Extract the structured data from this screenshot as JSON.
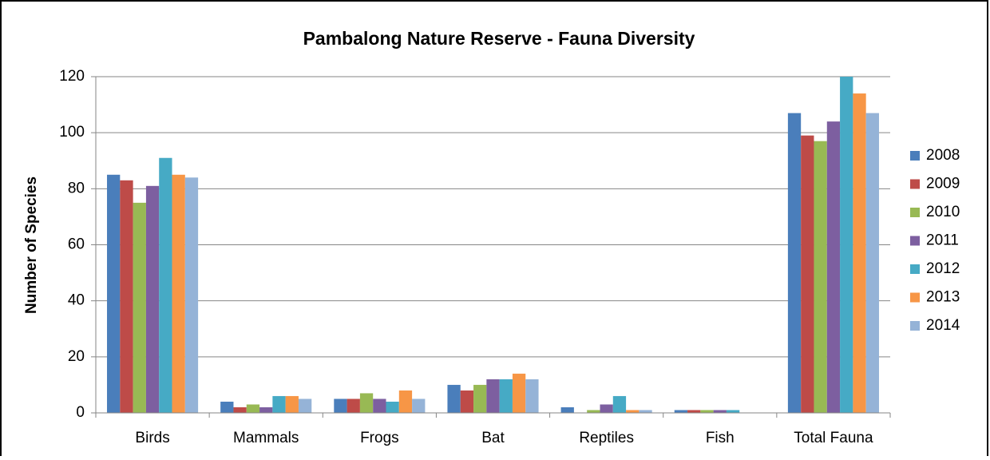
{
  "chart_data": {
    "type": "bar",
    "title": "Pambalong Nature Reserve - Fauna Diversity",
    "y_label": "Number of Species",
    "categories": [
      "Birds",
      "Mammals",
      "Frogs",
      "Bat",
      "Reptiles",
      "Fish",
      "Total Fauna"
    ],
    "series": [
      {
        "name": "2008",
        "color": "#4a7ebb",
        "values": [
          85,
          4,
          5,
          10,
          2,
          1,
          107
        ]
      },
      {
        "name": "2009",
        "color": "#be4b48",
        "values": [
          83,
          2,
          5,
          8,
          0,
          1,
          99
        ]
      },
      {
        "name": "2010",
        "color": "#98b954",
        "values": [
          75,
          3,
          7,
          10,
          1,
          1,
          97
        ]
      },
      {
        "name": "2011",
        "color": "#7d5fa0",
        "values": [
          81,
          2,
          5,
          12,
          3,
          1,
          104
        ]
      },
      {
        "name": "2012",
        "color": "#46aac5",
        "values": [
          91,
          6,
          4,
          12,
          6,
          1,
          120
        ]
      },
      {
        "name": "2013",
        "color": "#f79646",
        "values": [
          85,
          6,
          8,
          14,
          1,
          0,
          114
        ]
      },
      {
        "name": "2014",
        "color": "#95b3d7",
        "values": [
          84,
          5,
          5,
          12,
          1,
          0,
          107
        ]
      }
    ],
    "ylim": [
      0,
      120
    ],
    "yticks": [
      0,
      20,
      40,
      60,
      80,
      100,
      120
    ],
    "grid": true,
    "legend": "right"
  }
}
